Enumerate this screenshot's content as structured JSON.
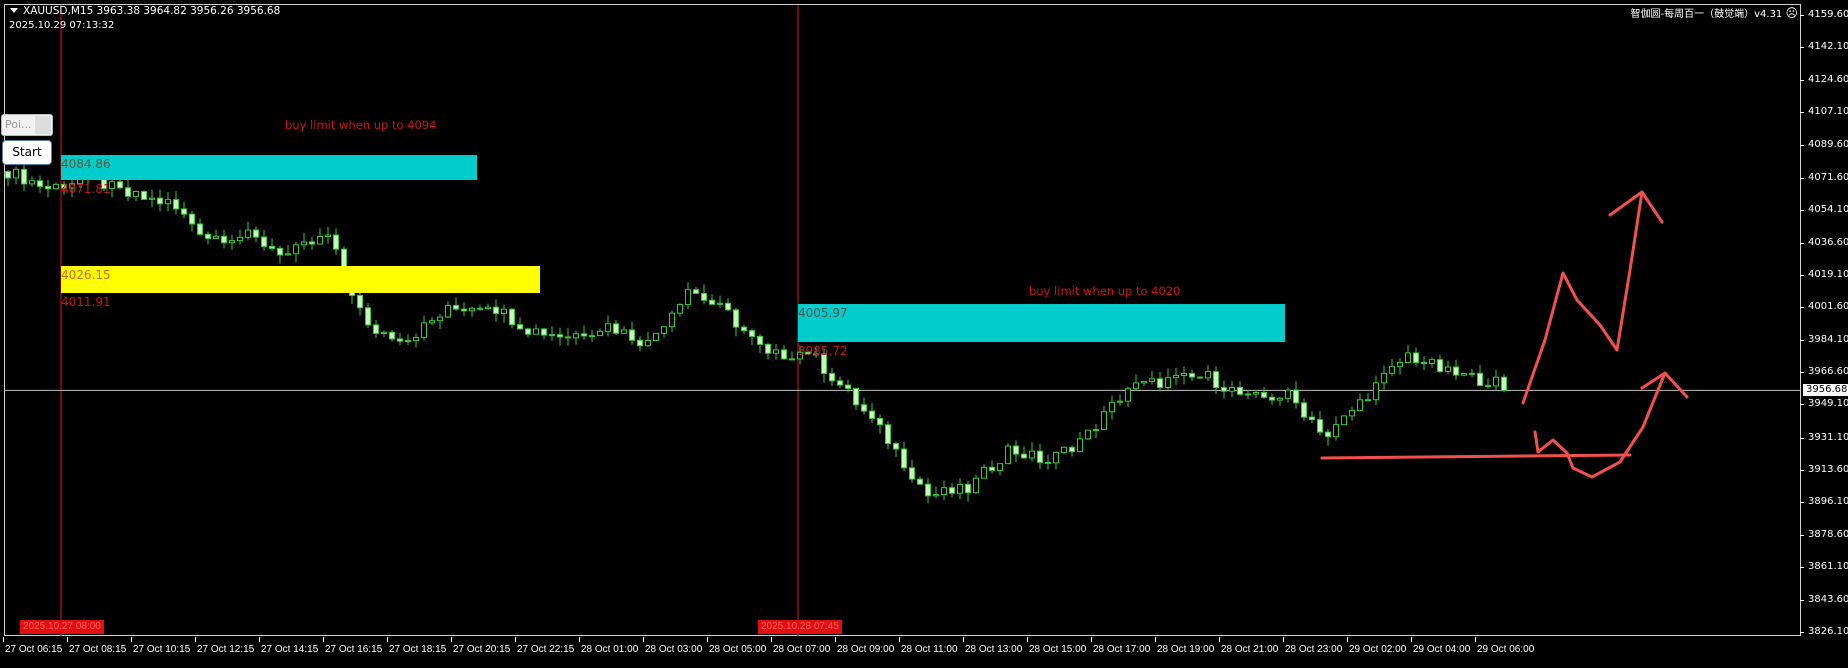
{
  "header": {
    "symbol_line": "XAUUSD,M15  3963.38 3964.82 3956.26 3956.68",
    "datetime": "2025.10.29 07:13:32",
    "indicator_label": "智伽圆-每周百一（鼓觉端）v4.31",
    "indicator_icon": "sad-face-icon"
  },
  "panel": {
    "point_input_value": "Poi...",
    "start_label": "Start"
  },
  "annotations": {
    "note1": "buy limit when up to 4094",
    "note2": "buy limit when up to 4020",
    "zones": [
      {
        "top_label": "4084.86",
        "bottom_label": "4071.81",
        "color": "#00cccc"
      },
      {
        "top_label": "4026.15",
        "bottom_label": "4011.91",
        "color": "#ffff00"
      },
      {
        "top_label": "4005.97",
        "bottom_label": "3985.72",
        "color": "#00cccc"
      }
    ],
    "vline_labels": [
      "2025.10.27 08:00",
      "2025.10.28 07:45"
    ],
    "drawing_color": "#f05050"
  },
  "chart_data": {
    "type": "candlestick",
    "symbol": "XAUUSD",
    "timeframe": "M15",
    "current_price": "3956.68",
    "ylim": [
      3826.1,
      4159.6
    ],
    "y_ticks": [
      "4159.60",
      "4142.10",
      "4124.60",
      "4107.10",
      "4089.60",
      "4071.60",
      "4054.10",
      "4036.60",
      "4019.10",
      "4001.60",
      "3984.10",
      "3966.60",
      "3949.10",
      "3931.10",
      "3913.60",
      "3896.10",
      "3878.60",
      "3861.10",
      "3843.60",
      "3826.10"
    ],
    "x_ticks": [
      "27 Oct 06:15",
      "27 Oct 08:15",
      "27 Oct 10:15",
      "27 Oct 12:15",
      "27 Oct 14:15",
      "27 Oct 16:15",
      "27 Oct 18:15",
      "27 Oct 20:15",
      "27 Oct 22:15",
      "28 Oct 01:00",
      "28 Oct 03:00",
      "28 Oct 05:00",
      "28 Oct 07:00",
      "28 Oct 09:00",
      "28 Oct 11:00",
      "28 Oct 13:00",
      "28 Oct 15:00",
      "28 Oct 17:00",
      "28 Oct 19:00",
      "28 Oct 21:00",
      "28 Oct 23:00",
      "29 Oct 02:00",
      "29 Oct 04:00",
      "29 Oct 06:00"
    ],
    "approx_close_path": [
      4075,
      4066,
      4072,
      4062,
      4058,
      4040,
      4040,
      4030,
      4040,
      3990,
      3985,
      4000,
      4004,
      3990,
      3986,
      3992,
      3982,
      4012,
      3998,
      3975,
      3978,
      3955,
      3930,
      3900,
      3903,
      3925,
      3918,
      3933,
      3958,
      3962,
      3964,
      3952,
      3954,
      3932,
      3955,
      3976,
      3966,
      3962,
      3957
    ],
    "bull_color": "#c8f5c0",
    "outline_color": "#33cc33"
  }
}
